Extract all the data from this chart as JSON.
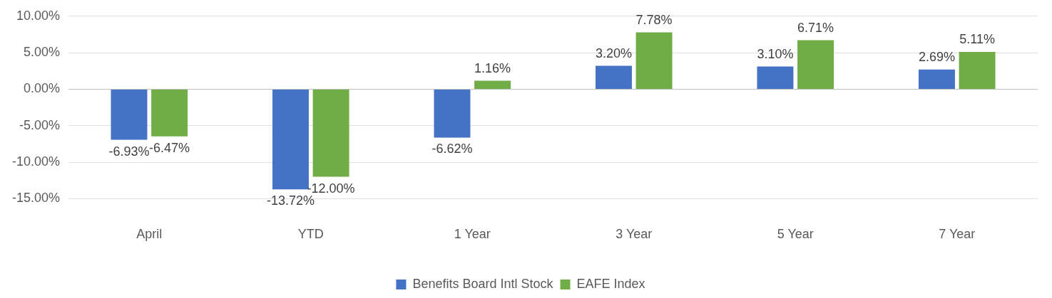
{
  "chart_data": {
    "type": "bar",
    "categories": [
      "April",
      "YTD",
      "1 Year",
      "3 Year",
      "5 Year",
      "7 Year"
    ],
    "series": [
      {
        "name": "Benefits Board Intl Stock",
        "color": "#4472c4",
        "values": [
          -6.93,
          -13.72,
          -6.62,
          3.2,
          3.1,
          2.69
        ],
        "value_labels": [
          "-6.93%",
          "-13.72%",
          "-6.62%",
          "3.20%",
          "3.10%",
          "2.69%"
        ]
      },
      {
        "name": "EAFE Index",
        "color": "#70ad47",
        "values": [
          -6.47,
          -12.0,
          1.16,
          7.78,
          6.71,
          5.11
        ],
        "value_labels": [
          "-6.47%",
          "-12.00%",
          "1.16%",
          "7.78%",
          "6.71%",
          "5.11%"
        ]
      }
    ],
    "ylim": [
      -15,
      10
    ],
    "yticks": [
      {
        "value": -15,
        "label": "-15.00%"
      },
      {
        "value": -10,
        "label": "-10.00%"
      },
      {
        "value": -5,
        "label": "-5.00%"
      },
      {
        "value": 0,
        "label": "0.00%"
      },
      {
        "value": 5,
        "label": "5.00%"
      },
      {
        "value": 10,
        "label": "10.00%"
      }
    ],
    "grid": "y",
    "legend": "bottom"
  }
}
